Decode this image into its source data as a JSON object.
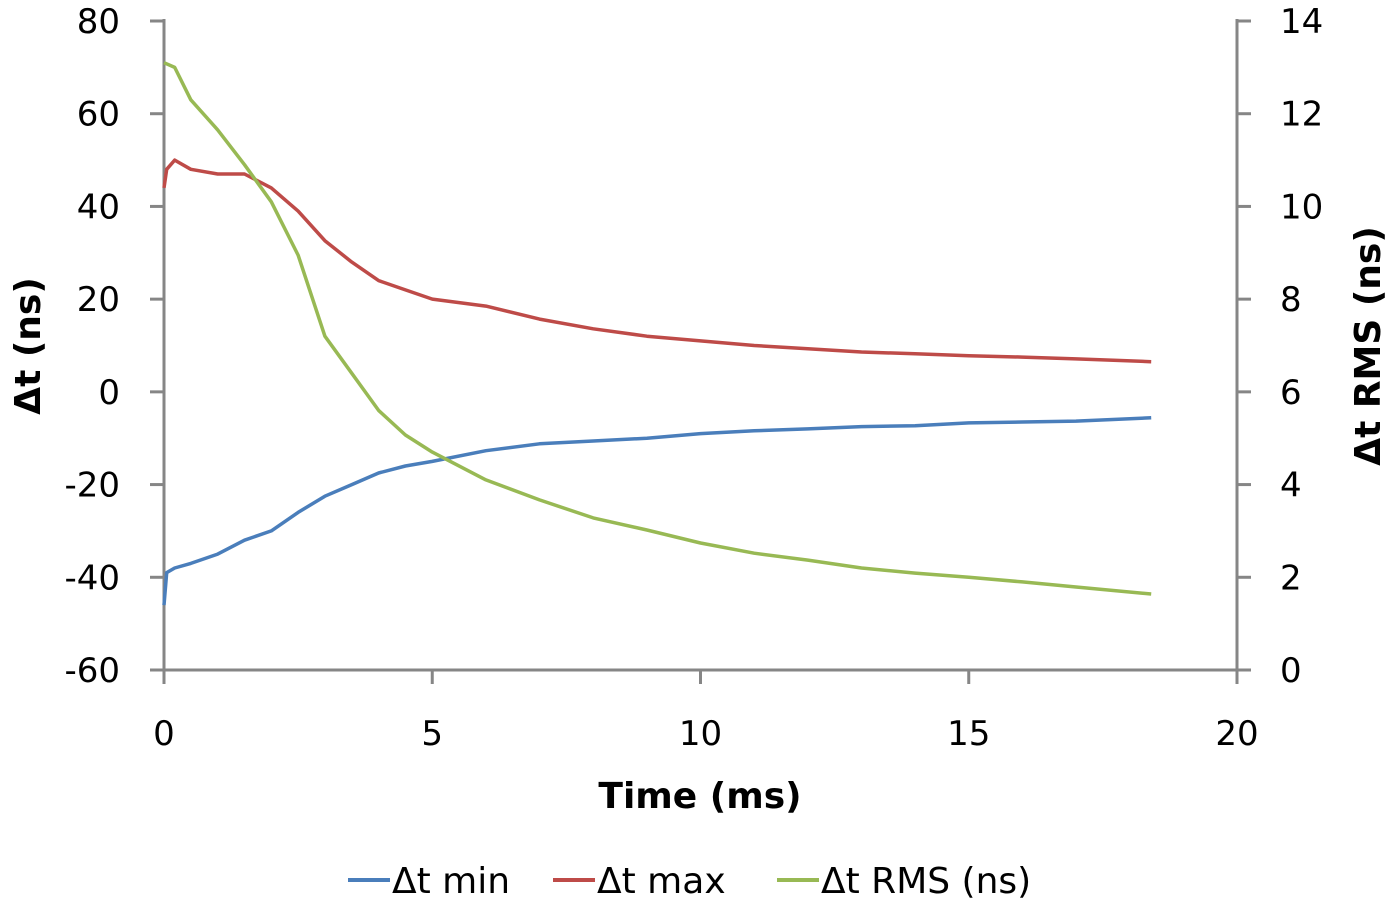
{
  "chart_data": {
    "type": "line",
    "xlabel": "Time (ms)",
    "ylabel": "Δt (ns)",
    "y2label": "Δt RMS (ns)",
    "xlim": [
      0,
      20
    ],
    "ylim": [
      -60,
      80
    ],
    "y2lim": [
      0,
      14
    ],
    "xticks": [
      "0",
      "5",
      "10",
      "15",
      "20"
    ],
    "yticks": [
      "80",
      "60",
      "40",
      "20",
      "0",
      "-20",
      "-40",
      "-60"
    ],
    "y2ticks": [
      "14",
      "12",
      "10",
      "8",
      "6",
      "4",
      "2",
      "0"
    ],
    "grid": false,
    "legend": "bottom",
    "series": [
      {
        "name": "Δt min",
        "axis": "left",
        "color": "#4a7ebb",
        "x": [
          0,
          0.05,
          0.2,
          0.5,
          1,
          1.5,
          2,
          2.5,
          3,
          3.5,
          4,
          4.5,
          5,
          6,
          7,
          8,
          9,
          10,
          11,
          12,
          13,
          14,
          15,
          16,
          17,
          18.4
        ],
        "y": [
          -46,
          -39,
          -38,
          -37,
          -35,
          -32,
          -30,
          -26,
          -22.5,
          -20,
          -17.5,
          -16,
          -15,
          -12.7,
          -11.2,
          -10.6,
          -10,
          -9,
          -8.4,
          -8,
          -7.5,
          -7.3,
          -6.7,
          -6.5,
          -6.3,
          -5.6
        ]
      },
      {
        "name": "Δt max",
        "axis": "left",
        "color": "#be4b48",
        "x": [
          0,
          0.05,
          0.2,
          0.5,
          1,
          1.5,
          2,
          2.5,
          3,
          3.5,
          4,
          4.5,
          5,
          6,
          7,
          8,
          9,
          10,
          11,
          12,
          13,
          14,
          15,
          16,
          17,
          18.4
        ],
        "y": [
          44,
          48,
          50,
          48,
          47,
          47,
          44,
          39,
          32.6,
          28,
          24,
          22,
          20,
          18.5,
          15.7,
          13.6,
          12,
          11,
          10,
          9.3,
          8.6,
          8.2,
          7.8,
          7.5,
          7.1,
          6.5
        ]
      },
      {
        "name": "Δt RMS (ns)",
        "axis": "right",
        "color": "#98b954",
        "x": [
          0,
          0.2,
          0.5,
          1,
          1.5,
          2,
          2.5,
          3,
          3.5,
          4,
          4.5,
          5,
          6,
          7,
          8,
          9,
          10,
          11,
          12,
          13,
          14,
          15,
          16,
          17,
          18.4
        ],
        "y": [
          13.1,
          13.0,
          12.3,
          11.65,
          10.9,
          10.1,
          8.95,
          7.2,
          6.4,
          5.6,
          5.07,
          4.7,
          4.1,
          3.67,
          3.28,
          3.02,
          2.74,
          2.52,
          2.37,
          2.2,
          2.09,
          2.0,
          1.9,
          1.79,
          1.64
        ]
      }
    ]
  }
}
